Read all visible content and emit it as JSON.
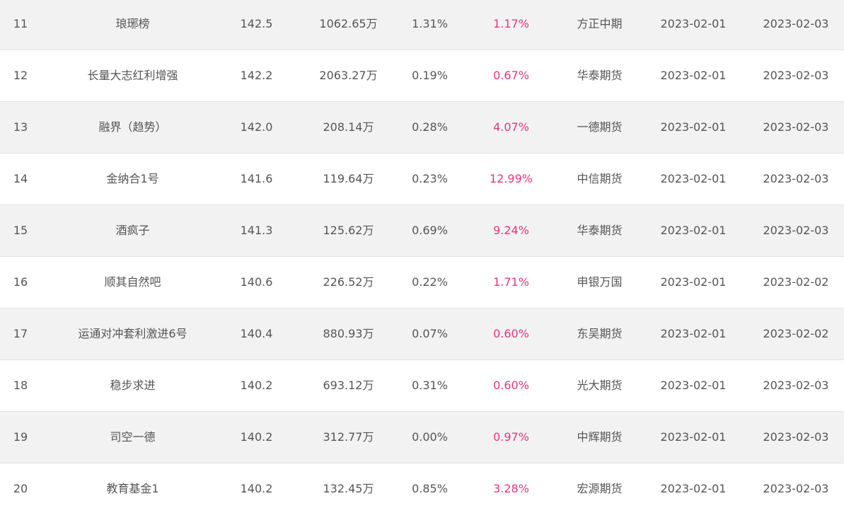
{
  "colors": {
    "row_alt": "#f2f2f2",
    "row_base": "#ffffff",
    "highlight_text": "#e8357a",
    "text": "#555555"
  },
  "rows": [
    {
      "rank": "11",
      "name": "琅琊榜",
      "score": "142.5",
      "scale": "1062.65万",
      "ret1": "1.31%",
      "ret2": "1.17%",
      "broker": "方正中期",
      "date1": "2023-02-01",
      "date2": "2023-02-03"
    },
    {
      "rank": "12",
      "name": "长量大志红利增强",
      "score": "142.2",
      "scale": "2063.27万",
      "ret1": "0.19%",
      "ret2": "0.67%",
      "broker": "华泰期货",
      "date1": "2023-02-01",
      "date2": "2023-02-03"
    },
    {
      "rank": "13",
      "name": "融界（趋势）",
      "score": "142.0",
      "scale": "208.14万",
      "ret1": "0.28%",
      "ret2": "4.07%",
      "broker": "一德期货",
      "date1": "2023-02-01",
      "date2": "2023-02-03"
    },
    {
      "rank": "14",
      "name": "金纳合1号",
      "score": "141.6",
      "scale": "119.64万",
      "ret1": "0.23%",
      "ret2": "12.99%",
      "broker": "中信期货",
      "date1": "2023-02-01",
      "date2": "2023-02-03"
    },
    {
      "rank": "15",
      "name": "酒疯子",
      "score": "141.3",
      "scale": "125.62万",
      "ret1": "0.69%",
      "ret2": "9.24%",
      "broker": "华泰期货",
      "date1": "2023-02-01",
      "date2": "2023-02-03"
    },
    {
      "rank": "16",
      "name": "顺其自然吧",
      "score": "140.6",
      "scale": "226.52万",
      "ret1": "0.22%",
      "ret2": "1.71%",
      "broker": "申银万国",
      "date1": "2023-02-01",
      "date2": "2023-02-02"
    },
    {
      "rank": "17",
      "name": "运通对冲套利激进6号",
      "score": "140.4",
      "scale": "880.93万",
      "ret1": "0.07%",
      "ret2": "0.60%",
      "broker": "东吴期货",
      "date1": "2023-02-01",
      "date2": "2023-02-02"
    },
    {
      "rank": "18",
      "name": "稳步求进",
      "score": "140.2",
      "scale": "693.12万",
      "ret1": "0.31%",
      "ret2": "0.60%",
      "broker": "光大期货",
      "date1": "2023-02-01",
      "date2": "2023-02-03"
    },
    {
      "rank": "19",
      "name": "司空一德",
      "score": "140.2",
      "scale": "312.77万",
      "ret1": "0.00%",
      "ret2": "0.97%",
      "broker": "中辉期货",
      "date1": "2023-02-01",
      "date2": "2023-02-03"
    },
    {
      "rank": "20",
      "name": "教育基金1",
      "score": "140.2",
      "scale": "132.45万",
      "ret1": "0.85%",
      "ret2": "3.28%",
      "broker": "宏源期货",
      "date1": "2023-02-01",
      "date2": "2023-02-03"
    }
  ]
}
